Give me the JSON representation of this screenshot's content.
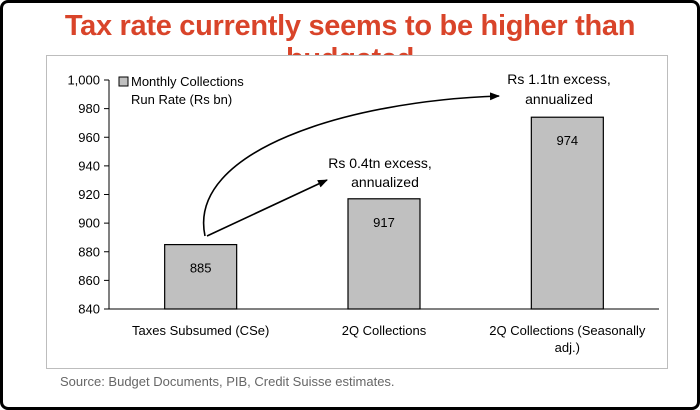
{
  "headline": "Tax rate currently seems to be higher than budgeted",
  "source": "Source: Budget Documents, PIB, Credit Suisse estimates.",
  "colors": {
    "headline": "#d9442a",
    "bar_fill": "#c0c0c0",
    "bar_stroke": "#000000"
  },
  "chart_data": {
    "type": "bar",
    "title": "",
    "xlabel": "",
    "ylabel": "",
    "ylim": [
      840,
      1000
    ],
    "yticks": [
      "1,000",
      "980",
      "960",
      "940",
      "920",
      "900",
      "880",
      "860",
      "840"
    ],
    "categories": [
      "Taxes Subsumed (CSe)",
      "2Q Collections",
      "2Q Collections (Seasonally adj.)"
    ],
    "series": [
      {
        "name": "Monthly Collections Run Rate (Rs bn)",
        "values": [
          885,
          917,
          974
        ]
      }
    ],
    "data_labels": [
      "885",
      "917",
      "974"
    ],
    "legend": {
      "line1": "Monthly Collections",
      "line2": "Run Rate (Rs bn)",
      "position": "top-left"
    },
    "annotations": [
      {
        "line1": "Rs 0.4tn excess,",
        "line2": "annualized"
      },
      {
        "line1": "Rs 1.1tn excess,",
        "line2": "annualized"
      }
    ],
    "grid": false
  }
}
